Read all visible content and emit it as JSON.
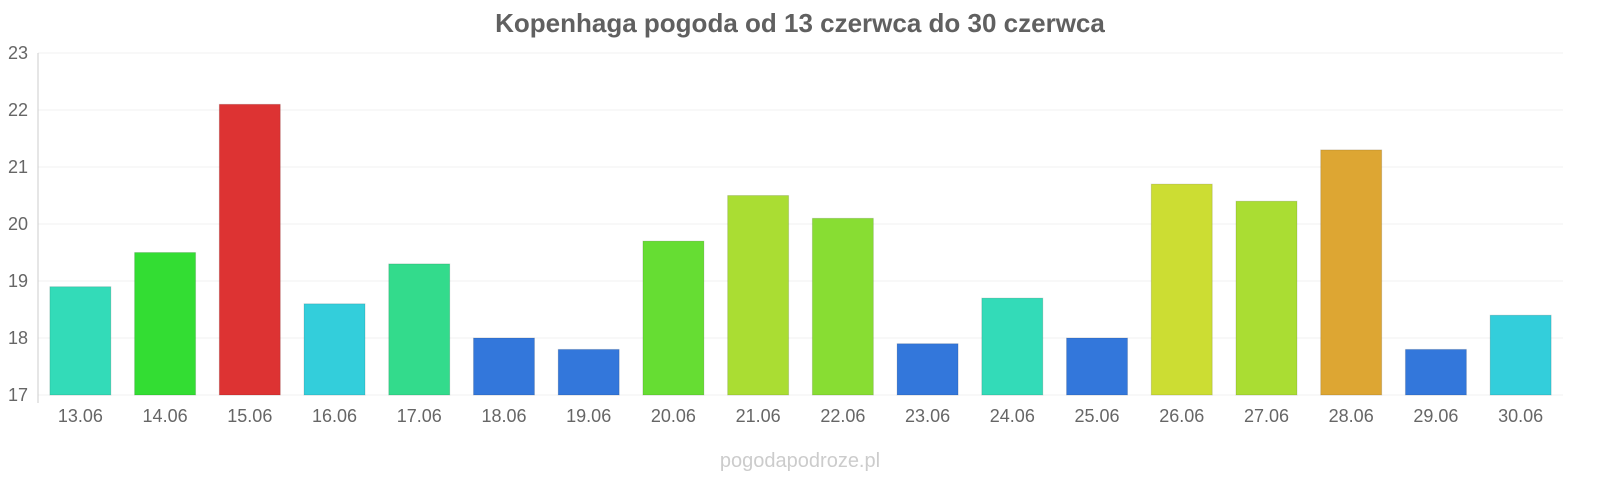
{
  "chart_data": {
    "type": "bar",
    "title": "Kopenhaga pogoda od 13 czerwca do 30 czerwca",
    "xlabel": "",
    "ylabel": "",
    "ylim": [
      17,
      23
    ],
    "y_ticks": [
      17,
      18,
      19,
      20,
      21,
      22,
      23
    ],
    "grid": true,
    "categories": [
      "13.06",
      "14.06",
      "15.06",
      "16.06",
      "17.06",
      "18.06",
      "19.06",
      "20.06",
      "21.06",
      "22.06",
      "23.06",
      "24.06",
      "25.06",
      "26.06",
      "27.06",
      "28.06",
      "29.06",
      "30.06"
    ],
    "values": [
      18.9,
      19.5,
      22.1,
      18.6,
      19.3,
      18.0,
      17.8,
      19.7,
      20.5,
      20.1,
      17.9,
      18.7,
      18.0,
      20.7,
      20.4,
      21.3,
      17.8,
      18.4
    ],
    "bar_colors": [
      "#33dbb8",
      "#33dd33",
      "#dd3333",
      "#33cedb",
      "#33db8c",
      "#3377db",
      "#3377db",
      "#66dd33",
      "#aadd33",
      "#88dd33",
      "#3377db",
      "#33dbb8",
      "#3377db",
      "#ccdd33",
      "#aadd33",
      "#dda633",
      "#3377db",
      "#33cedb"
    ]
  },
  "watermark": "pogodapodroze.pl"
}
